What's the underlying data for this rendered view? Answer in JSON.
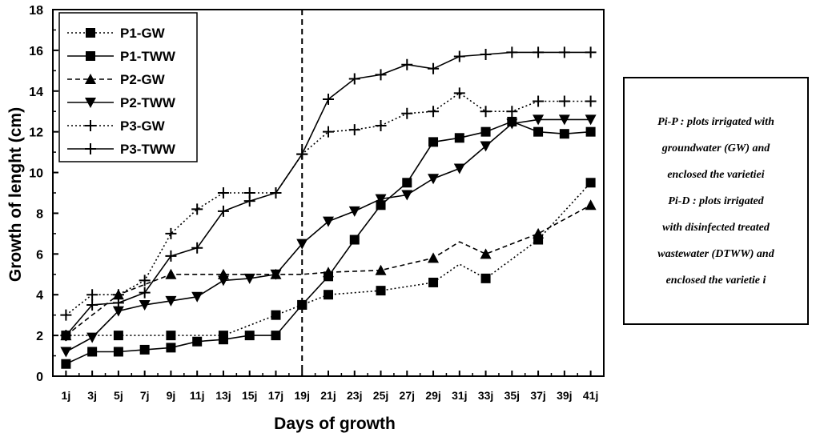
{
  "chart_data": {
    "type": "line",
    "xlabel": "Days of growth",
    "ylabel": "Growth of lenght (cm)",
    "ylim": [
      0,
      18
    ],
    "yticks": [
      "0",
      "2",
      "4",
      "6",
      "8",
      "10",
      "12",
      "14",
      "16",
      "18"
    ],
    "x_ticks": [
      "1j",
      "3j",
      "5j",
      "7j",
      "9j",
      "11j",
      "13j",
      "15j",
      "17j",
      "19j",
      "21j",
      "23j",
      "25j",
      "27j",
      "29j",
      "31j",
      "33j",
      "35j",
      "37j",
      "39j",
      "41j"
    ],
    "x_days": [
      1,
      3,
      5,
      7,
      9,
      11,
      13,
      15,
      17,
      19,
      21,
      23,
      25,
      27,
      29,
      31,
      33,
      35,
      37,
      39,
      41
    ],
    "vertical_line_day": 19,
    "legend_position": "top-left",
    "series": [
      {
        "name": "P1-GW",
        "marker": "square",
        "dash": "dotted",
        "x": [
          1,
          5,
          9,
          13,
          17,
          19,
          21,
          25,
          29,
          31,
          33,
          37,
          41
        ],
        "y": [
          2.0,
          2.0,
          2.0,
          2.0,
          3.0,
          3.5,
          4.0,
          4.2,
          4.6,
          5.5,
          4.8,
          6.7,
          9.5
        ],
        "marker_x": [
          1,
          5,
          9,
          13,
          17,
          19,
          21,
          25,
          29,
          33,
          37,
          41
        ]
      },
      {
        "name": "P1-TWW",
        "marker": "square",
        "dash": "solid",
        "x": [
          1,
          3,
          5,
          7,
          9,
          11,
          13,
          15,
          17,
          19,
          21,
          23,
          25,
          27,
          29,
          31,
          33,
          35,
          37,
          39,
          41
        ],
        "y": [
          0.6,
          1.2,
          1.2,
          1.3,
          1.4,
          1.7,
          1.8,
          2.0,
          2.0,
          3.5,
          4.9,
          6.7,
          8.4,
          9.5,
          11.5,
          11.7,
          12.0,
          12.5,
          12.0,
          11.9,
          12.0
        ]
      },
      {
        "name": "P2-GW",
        "marker": "triangle-up",
        "dash": "dashed",
        "x": [
          1,
          5,
          9,
          13,
          17,
          19,
          21,
          25,
          29,
          31,
          33,
          37,
          41
        ],
        "y": [
          2.0,
          4.0,
          5.0,
          5.0,
          5.0,
          5.0,
          5.1,
          5.2,
          5.8,
          6.6,
          6.0,
          7.0,
          8.4
        ],
        "marker_x": [
          1,
          5,
          9,
          13,
          17,
          21,
          25,
          29,
          33,
          37,
          41
        ]
      },
      {
        "name": "P2-TWW",
        "marker": "triangle-down",
        "dash": "solid",
        "x": [
          1,
          3,
          5,
          7,
          9,
          11,
          13,
          15,
          17,
          19,
          21,
          23,
          25,
          27,
          29,
          31,
          33,
          35,
          37,
          39,
          41
        ],
        "y": [
          1.2,
          1.9,
          3.2,
          3.5,
          3.7,
          3.9,
          4.7,
          4.8,
          5.0,
          6.5,
          7.6,
          8.1,
          8.7,
          8.9,
          9.7,
          10.2,
          11.3,
          12.4,
          12.6,
          12.6,
          12.6
        ]
      },
      {
        "name": "P3-GW",
        "marker": "plus",
        "dash": "dotted",
        "x": [
          1,
          3,
          5,
          7,
          9,
          11,
          13,
          15,
          17,
          19,
          21,
          23,
          25,
          27,
          29,
          31,
          33,
          35,
          37,
          39,
          41
        ],
        "y": [
          3.0,
          4.0,
          4.0,
          4.7,
          7.0,
          8.2,
          9.0,
          9.0,
          9.0,
          10.9,
          12.0,
          12.1,
          12.3,
          12.9,
          13.0,
          13.9,
          13.0,
          13.0,
          13.5,
          13.5,
          13.5
        ]
      },
      {
        "name": "P3-TWW",
        "marker": "plus",
        "dash": "solid",
        "x": [
          1,
          3,
          5,
          7,
          9,
          11,
          13,
          15,
          17,
          19,
          21,
          23,
          25,
          27,
          29,
          31,
          33,
          35,
          37,
          39,
          41
        ],
        "y": [
          2.0,
          3.5,
          3.6,
          4.1,
          5.9,
          6.3,
          8.1,
          8.6,
          9.0,
          10.9,
          13.6,
          14.6,
          14.8,
          15.3,
          15.1,
          15.7,
          15.8,
          15.9,
          15.9,
          15.9,
          15.9
        ]
      }
    ]
  },
  "note": {
    "lines": [
      "Pi-P : plots irrigated with",
      "groundwater (GW) and",
      "enclosed the varietiei",
      "Pi-D : plots irrigated",
      "with disinfected treated",
      "wastewater (DTWW) and",
      "enclosed the varietie i"
    ]
  }
}
